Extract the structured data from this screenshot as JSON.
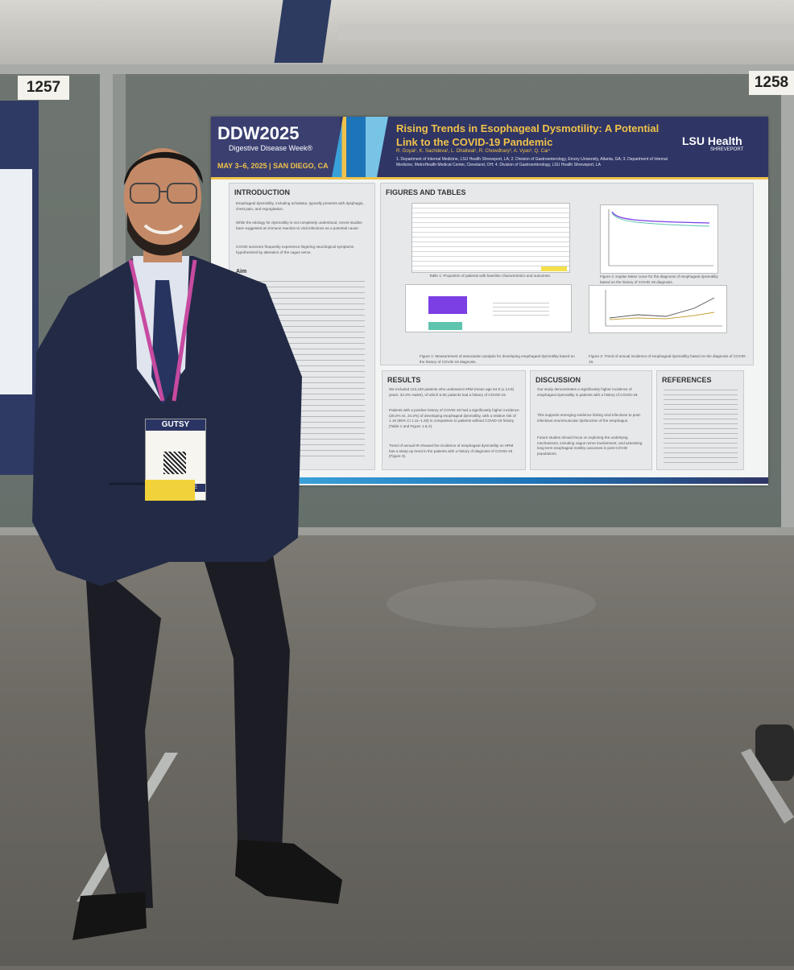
{
  "booth_labels": {
    "left": "1257",
    "right": "1258"
  },
  "poster": {
    "logo": "DDW2025",
    "logo_sub": "Digestive Disease Week®",
    "date_location": "MAY 3–6, 2025 | SAN DIEGO, CA",
    "title": "Rising Trends in Esophageal Dysmotility: A Potential Link to the COVID-19 Pandemic",
    "authors": "R. Goyal¹, K. Sachdeva¹, L. Dhaliwal¹, R. Chowdhary², A. Vyas³, Q. Cai⁴",
    "affiliations": "1. Department of Internal Medicine, LSU Health Shreveport, LA; 2. Division of Gastroenterology, Emory University, Atlanta, GA; 3. Department of Internal Medicine, MetroHealth Medical Center, Cleveland, OH; 4. Division of Gastroenterology, LSU Health Shreveport, LA",
    "institution_logo": "LSU Health",
    "institution_sub": "SHREVEPORT",
    "sections": {
      "introduction": {
        "heading": "INTRODUCTION",
        "bullets": [
          "Esophageal dysmotility, including achalasia, typically presents with dysphagia, chest pain, and regurgitation.",
          "While the etiology for dysmotility is not completely understood, recent studies have suggested an immune reaction to viral infections as a potential cause.",
          "COVID survivors frequently experience lingering neurological symptoms hypothesized by alteration of the vagus nerve."
        ],
        "aim_heading": "Aim"
      },
      "figures": {
        "heading": "FIGURES AND TABLES",
        "table1_caption": "Table 1: Proportion of patients with baseline characteristics and outcomes.",
        "fig1_caption": "Figure 1: Measurement of association analysis for developing esophageal dysmotility based on the history of COVID-19 diagnosis.",
        "fig2_caption": "Figure 2: Kaplan Meier curve for the diagnosis of esophageal dysmotility based on the history of COVID-19 diagnosis.",
        "fig3_caption": "Figure 3: Trend of annual incidence of esophageal dysmotility based on the diagnosis of COVID-19."
      },
      "results": {
        "heading": "RESULTS",
        "bullets": [
          "We included 122,440 patients who underwent HRM (mean age 54.9 (± 14.8) years, 32.3% males), of which 5.5K patients had a history of COVID-19.",
          "Patients with a positive history of COVID-19 had a significantly higher incidence (28.2% vs. 24.2%) of developing esophageal dysmotility, with a relative risk of 1.16 (95% CI 1.11–1.20) in comparison to patients without COVID-19 history (Table 1 and Figure 1 & 2).",
          "Trend of annual IR showed the incidence of esophageal dysmotility on HRM has a steep up trend in the patients with a history of diagnosis of COVID-19 (Figure 3)."
        ]
      },
      "discussion": {
        "heading": "DISCUSSION",
        "bullets": [
          "Our study demonstrates a significantly higher incidence of esophageal dysmotility in patients with a history of COVID-19.",
          "This supports emerging evidence linking viral infections to post-infectious neuromuscular dysfunction of the esophagus.",
          "Future studies should focus on exploring the underlying mechanisms, including vagus nerve involvement, and assessing long-term esophageal motility outcomes in post-COVID populations."
        ]
      },
      "references": {
        "heading": "REFERENCES"
      }
    }
  },
  "badge": {
    "brand": "GUTSY",
    "ribbon": "MEMBER TRAINEE"
  },
  "colors": {
    "poster_header": "#2f3565",
    "accent_gold": "#f0c24a",
    "accent_blue": "#3aa0d8",
    "bar_purple": "#7b3fe4",
    "bar_teal": "#5fc4ad",
    "suit": "#232a45",
    "lanyard": "#c74aa0"
  }
}
